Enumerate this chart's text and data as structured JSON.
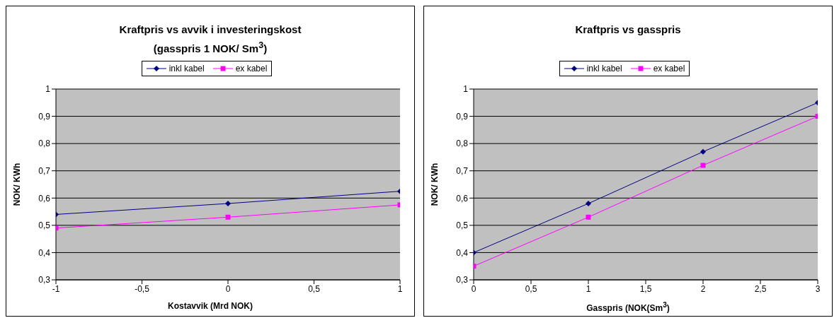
{
  "chart_data": [
    {
      "type": "line",
      "title": "Kraftpris vs avvik i investeringskost",
      "subtitle": "(gasspris 1 NOK/ Sm$^{3}$)",
      "xlabel": "Kostavvik (Mrd NOK)",
      "ylabel": "NOK/ KWh",
      "x": [
        -1,
        0,
        1
      ],
      "series": [
        {
          "name": "inkl kabel",
          "color": "#000080",
          "marker": "diamond",
          "values": [
            0.54,
            0.58,
            0.625
          ]
        },
        {
          "name": "ex kabel",
          "color": "#ff00ff",
          "marker": "square",
          "values": [
            0.49,
            0.53,
            0.575
          ]
        }
      ],
      "xlim": [
        -1,
        1
      ],
      "xticks": [
        -1,
        {
          "value": -0.5,
          "label": "-0,5"
        },
        0,
        {
          "value": 0.5,
          "label": "0,5"
        },
        1
      ],
      "ylim": [
        0.3,
        1
      ],
      "yticks": [
        {
          "value": 0.3,
          "label": "0,3"
        },
        {
          "value": 0.4,
          "label": "0,4"
        },
        {
          "value": 0.5,
          "label": "0,5"
        },
        {
          "value": 0.6,
          "label": "0,6"
        },
        {
          "value": 0.7,
          "label": "0,7"
        },
        {
          "value": 0.8,
          "label": "0,8"
        },
        {
          "value": 0.9,
          "label": "0,9"
        },
        1
      ],
      "grid": "y",
      "legend": "top",
      "line_style": "solid"
    },
    {
      "type": "line",
      "title": "Kraftpris vs gasspris",
      "xlabel": "Gasspris (NOK(Sm$^{3}$)",
      "ylabel": "NOK/ KWh",
      "x": [
        0,
        1,
        2,
        3
      ],
      "series": [
        {
          "name": "inkl kabel",
          "color": "#000080",
          "marker": "diamond",
          "values": [
            0.4,
            0.58,
            0.77,
            0.95
          ]
        },
        {
          "name": "ex kabel",
          "color": "#ff00ff",
          "marker": "square",
          "values": [
            0.35,
            0.53,
            0.72,
            0.9
          ]
        }
      ],
      "xlim": [
        0,
        3
      ],
      "xticks": [
        0,
        {
          "value": 0.5,
          "label": "0,5"
        },
        1,
        {
          "value": 1.5,
          "label": "1,5"
        },
        2,
        {
          "value": 2.5,
          "label": "2,5"
        },
        3
      ],
      "ylim": [
        0.3,
        1
      ],
      "yticks": [
        {
          "value": 0.3,
          "label": "0,3"
        },
        {
          "value": 0.4,
          "label": "0,4"
        },
        {
          "value": 0.5,
          "label": "0,5"
        },
        {
          "value": 0.6,
          "label": "0,6"
        },
        {
          "value": 0.7,
          "label": "0,7"
        },
        {
          "value": 0.8,
          "label": "0,8"
        },
        {
          "value": 0.9,
          "label": "0,9"
        },
        1
      ],
      "grid": "y",
      "legend": "top",
      "line_style": "solid"
    }
  ]
}
